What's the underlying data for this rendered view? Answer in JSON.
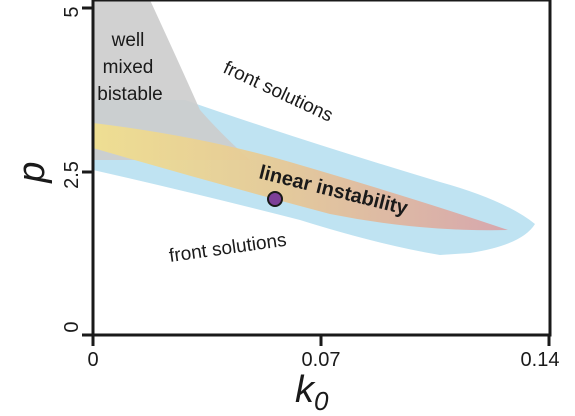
{
  "axes": {
    "x_ticks": [
      "0",
      "0.07",
      "0.14"
    ],
    "y_ticks": [
      "0",
      "2.5",
      "5"
    ],
    "x_label_main": "k",
    "x_label_sub": "0",
    "y_label": "p"
  },
  "regions": {
    "well_mixed": [
      "well",
      "mixed",
      "bistable"
    ],
    "front_upper": "front solutions",
    "front_lower": "front solutions",
    "linear_instability": "linear instability"
  },
  "colors": {
    "front_region": "#bfe3f2",
    "well_mixed_region": "#cccccc",
    "instability_start": "#f2e08c",
    "instability_end": "#d9a0a6",
    "marker_fill": "#7d3f98"
  },
  "icons": {
    "marker": "circle-marker-icon"
  }
}
